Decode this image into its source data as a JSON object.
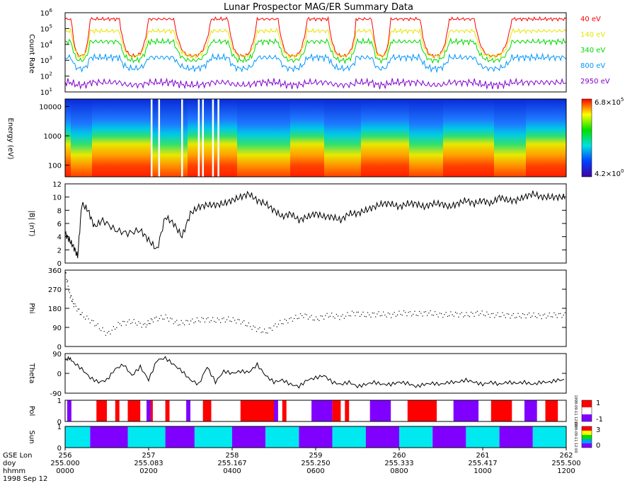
{
  "title": "Lunar Prospector MAG/ER Summary Data",
  "chart_data": [
    {
      "type": "line",
      "id": "count_rate",
      "ylabel": "Count Rate",
      "yscale": "log",
      "ylim": [
        10,
        1000000
      ],
      "yticks": [
        {
          "v": 10,
          "b": "10",
          "e": "1"
        },
        {
          "v": 100,
          "b": "10",
          "e": "2"
        },
        {
          "v": 1000,
          "b": "10",
          "e": "3"
        },
        {
          "v": 10000,
          "b": "10",
          "e": "4"
        },
        {
          "v": 100000,
          "b": "10",
          "e": "5"
        },
        {
          "v": 1000000,
          "b": "10",
          "e": "6"
        }
      ],
      "x_range_hours": [
        0,
        12
      ],
      "series": [
        {
          "name": "40 eV",
          "color": "#ff0000",
          "high": 400000,
          "low": 500
        },
        {
          "name": "140 eV",
          "color": "#e6e600",
          "high": 70000,
          "low": 700
        },
        {
          "name": "340 eV",
          "color": "#00d800",
          "high": 15000,
          "low": 500
        },
        {
          "name": "800 eV",
          "color": "#0096ff",
          "high": 1500,
          "low": 200
        },
        {
          "name": "2950 eV",
          "color": "#8000d0",
          "high": 40,
          "low": 25
        }
      ]
    },
    {
      "type": "heatmap",
      "id": "spectrogram",
      "ylabel": "Energy (eV)",
      "yscale": "log",
      "ylim": [
        40,
        18000
      ],
      "yticks": [
        {
          "v": 100,
          "l": "100"
        },
        {
          "v": 1000,
          "l": "1000"
        },
        {
          "v": 10000,
          "l": "10000"
        }
      ],
      "colorbar": {
        "max_b": "6.8",
        "max_e": "5",
        "min_b": "4.2",
        "min_e": "0",
        "times": "×"
      },
      "data_gaps_hours": [
        2.05,
        2.23,
        2.78,
        3.18,
        3.28,
        3.52,
        3.65
      ]
    },
    {
      "type": "line",
      "id": "bmag",
      "ylabel": "|B| (nT)",
      "ylim": [
        0,
        12
      ],
      "yticks": [
        0,
        2,
        4,
        6,
        8,
        10,
        12
      ],
      "points": [
        [
          0,
          4.5
        ],
        [
          0.1,
          3.5
        ],
        [
          0.2,
          2.5
        ],
        [
          0.3,
          1
        ],
        [
          0.4,
          9
        ],
        [
          0.55,
          8
        ],
        [
          0.7,
          5.5
        ],
        [
          0.9,
          6.5
        ],
        [
          1.2,
          5
        ],
        [
          1.5,
          4.5
        ],
        [
          1.8,
          5
        ],
        [
          2.0,
          3.5
        ],
        [
          2.2,
          2
        ],
        [
          2.4,
          7
        ],
        [
          2.6,
          6
        ],
        [
          2.8,
          4
        ],
        [
          3.0,
          7.5
        ],
        [
          3.2,
          8.5
        ],
        [
          3.4,
          8.8
        ],
        [
          3.6,
          8.8
        ],
        [
          3.8,
          9
        ],
        [
          4.0,
          9.5
        ],
        [
          4.2,
          10
        ],
        [
          4.4,
          10.5
        ],
        [
          4.6,
          9.5
        ],
        [
          4.8,
          9
        ],
        [
          5.0,
          8
        ],
        [
          5.2,
          7
        ],
        [
          5.4,
          7.5
        ],
        [
          5.6,
          6.5
        ],
        [
          5.8,
          7
        ],
        [
          6.0,
          7.5
        ],
        [
          6.2,
          7
        ],
        [
          6.4,
          7
        ],
        [
          6.6,
          6.5
        ],
        [
          6.8,
          7.5
        ],
        [
          7.0,
          7.5
        ],
        [
          7.2,
          8
        ],
        [
          7.4,
          8.5
        ],
        [
          7.6,
          9
        ],
        [
          7.8,
          9
        ],
        [
          8.0,
          8.5
        ],
        [
          8.2,
          9
        ],
        [
          8.4,
          9
        ],
        [
          8.6,
          8.5
        ],
        [
          8.8,
          9
        ],
        [
          9.0,
          9
        ],
        [
          9.2,
          8.5
        ],
        [
          9.4,
          9
        ],
        [
          9.6,
          9.5
        ],
        [
          9.8,
          9
        ],
        [
          10.0,
          9.5
        ],
        [
          10.2,
          9
        ],
        [
          10.4,
          10
        ],
        [
          10.6,
          9.5
        ],
        [
          10.8,
          9.5
        ],
        [
          11.0,
          10
        ],
        [
          11.2,
          10.5
        ],
        [
          11.4,
          10
        ],
        [
          11.6,
          10
        ],
        [
          11.8,
          10
        ],
        [
          12.0,
          10
        ]
      ]
    },
    {
      "type": "scatter",
      "id": "phi",
      "ylabel": "Phi",
      "ylim": [
        0,
        360
      ],
      "yticks": [
        0,
        90,
        180,
        270,
        360
      ],
      "points": [
        [
          0,
          350
        ],
        [
          0.1,
          250
        ],
        [
          0.2,
          200
        ],
        [
          0.4,
          150
        ],
        [
          0.7,
          110
        ],
        [
          1.0,
          60
        ],
        [
          1.3,
          110
        ],
        [
          1.6,
          120
        ],
        [
          1.9,
          100
        ],
        [
          2.1,
          130
        ],
        [
          2.4,
          140
        ],
        [
          2.7,
          110
        ],
        [
          3.0,
          120
        ],
        [
          3.3,
          130
        ],
        [
          3.6,
          125
        ],
        [
          3.9,
          130
        ],
        [
          4.2,
          120
        ],
        [
          4.5,
          90
        ],
        [
          4.8,
          70
        ],
        [
          5.1,
          110
        ],
        [
          5.4,
          130
        ],
        [
          5.7,
          150
        ],
        [
          6.0,
          130
        ],
        [
          6.3,
          150
        ],
        [
          6.6,
          140
        ],
        [
          6.9,
          160
        ],
        [
          7.2,
          150
        ],
        [
          7.5,
          155
        ],
        [
          7.8,
          150
        ],
        [
          8.1,
          160
        ],
        [
          8.4,
          155
        ],
        [
          8.7,
          160
        ],
        [
          9.0,
          150
        ],
        [
          9.3,
          155
        ],
        [
          9.6,
          150
        ],
        [
          9.9,
          160
        ],
        [
          10.2,
          150
        ],
        [
          10.5,
          150
        ],
        [
          10.8,
          145
        ],
        [
          11.1,
          150
        ],
        [
          11.4,
          145
        ],
        [
          11.7,
          150
        ],
        [
          12.0,
          150
        ]
      ]
    },
    {
      "type": "line",
      "id": "theta",
      "ylabel": "Theta",
      "ylim": [
        -90,
        90
      ],
      "yticks": [
        -90,
        0,
        90
      ],
      "points": [
        [
          0,
          60
        ],
        [
          0.1,
          70
        ],
        [
          0.2,
          50
        ],
        [
          0.4,
          20
        ],
        [
          0.6,
          -20
        ],
        [
          0.8,
          -40
        ],
        [
          1.0,
          -30
        ],
        [
          1.2,
          20
        ],
        [
          1.4,
          40
        ],
        [
          1.6,
          -10
        ],
        [
          1.8,
          30
        ],
        [
          2.0,
          -30
        ],
        [
          2.2,
          60
        ],
        [
          2.4,
          70
        ],
        [
          2.6,
          40
        ],
        [
          2.8,
          10
        ],
        [
          3.0,
          -30
        ],
        [
          3.2,
          -50
        ],
        [
          3.4,
          30
        ],
        [
          3.6,
          -40
        ],
        [
          3.8,
          10
        ],
        [
          4.0,
          0
        ],
        [
          4.2,
          10
        ],
        [
          4.4,
          5
        ],
        [
          4.6,
          40
        ],
        [
          4.8,
          -10
        ],
        [
          5.0,
          -40
        ],
        [
          5.2,
          -30
        ],
        [
          5.4,
          -50
        ],
        [
          5.6,
          -60
        ],
        [
          5.8,
          -30
        ],
        [
          6.0,
          -20
        ],
        [
          6.2,
          -10
        ],
        [
          6.4,
          -40
        ],
        [
          6.6,
          -50
        ],
        [
          6.8,
          -40
        ],
        [
          7.0,
          -60
        ],
        [
          7.2,
          -50
        ],
        [
          7.4,
          -40
        ],
        [
          7.6,
          -50
        ],
        [
          7.8,
          -50
        ],
        [
          8.0,
          -40
        ],
        [
          8.2,
          -45
        ],
        [
          8.4,
          -60
        ],
        [
          8.6,
          -50
        ],
        [
          8.8,
          -45
        ],
        [
          9.0,
          -50
        ],
        [
          9.2,
          -40
        ],
        [
          9.4,
          -40
        ],
        [
          9.6,
          -30
        ],
        [
          9.8,
          -40
        ],
        [
          10.0,
          -50
        ],
        [
          10.2,
          -40
        ],
        [
          10.4,
          -50
        ],
        [
          10.6,
          -40
        ],
        [
          10.8,
          -45
        ],
        [
          11.0,
          -40
        ],
        [
          11.2,
          -50
        ],
        [
          11.4,
          -40
        ],
        [
          11.6,
          -40
        ],
        [
          11.8,
          -30
        ],
        [
          12.0,
          -30
        ]
      ]
    },
    {
      "type": "area",
      "id": "pol",
      "ylabel": "Pol",
      "ylim": [
        0,
        1
      ],
      "yticks": [
        0,
        1
      ],
      "colorbar": {
        "max": "1",
        "min": "-1"
      },
      "segments": [
        [
          0.05,
          0.15,
          "#8000ff"
        ],
        [
          0.75,
          1.0,
          "#ff0000"
        ],
        [
          1.2,
          1.3,
          "#ff0000"
        ],
        [
          1.5,
          1.8,
          "#ff0000"
        ],
        [
          1.95,
          2.05,
          "#8000ff"
        ],
        [
          2.05,
          2.1,
          "#ff0000"
        ],
        [
          2.4,
          2.5,
          "#ff0000"
        ],
        [
          2.9,
          3.0,
          "#8000ff"
        ],
        [
          3.3,
          3.5,
          "#ff0000"
        ],
        [
          4.2,
          5.0,
          "#ff0000"
        ],
        [
          5.0,
          5.1,
          "#8000ff"
        ],
        [
          5.2,
          5.3,
          "#ff0000"
        ],
        [
          5.9,
          6.4,
          "#8000ff"
        ],
        [
          6.4,
          6.6,
          "#ff0000"
        ],
        [
          6.7,
          6.8,
          "#ff0000"
        ],
        [
          7.3,
          7.8,
          "#8000ff"
        ],
        [
          8.2,
          8.9,
          "#ff0000"
        ],
        [
          9.3,
          9.9,
          "#8000ff"
        ],
        [
          10.2,
          10.7,
          "#ff0000"
        ],
        [
          11.0,
          11.3,
          "#8000ff"
        ],
        [
          11.5,
          11.8,
          "#ff0000"
        ]
      ],
      "side_text": "1998-09-11 12:00"
    },
    {
      "type": "area",
      "id": "sun",
      "ylabel": "Sun",
      "ylim": [
        0,
        1
      ],
      "yticks": [
        0,
        1
      ],
      "colorbar": {
        "max": "3",
        "min": "0"
      },
      "segments": [
        [
          0,
          0.6,
          "#00e8f0"
        ],
        [
          0.6,
          1.5,
          "#8000ff"
        ],
        [
          1.5,
          2.4,
          "#00e8f0"
        ],
        [
          2.4,
          3.1,
          "#8000ff"
        ],
        [
          3.1,
          4.0,
          "#00e8f0"
        ],
        [
          4.0,
          4.8,
          "#8000ff"
        ],
        [
          4.8,
          5.6,
          "#00e8f0"
        ],
        [
          5.6,
          6.4,
          "#8000ff"
        ],
        [
          6.4,
          7.2,
          "#00e8f0"
        ],
        [
          7.2,
          8.0,
          "#8000ff"
        ],
        [
          8.0,
          8.8,
          "#00e8f0"
        ],
        [
          8.8,
          9.6,
          "#8000ff"
        ],
        [
          9.6,
          10.4,
          "#00e8f0"
        ],
        [
          10.4,
          11.2,
          "#8000ff"
        ],
        [
          11.2,
          12.0,
          "#00e8f0"
        ]
      ],
      "side_text": "1998-09-11 12:00"
    }
  ],
  "x_axis": {
    "row_labels": [
      "GSE Lon",
      "doy",
      "hhmm",
      "1998 Sep 12"
    ],
    "ticks": [
      {
        "h": 0,
        "lon": "256",
        "doy": "255.000",
        "hhmm": "0000"
      },
      {
        "h": 2,
        "lon": "257",
        "doy": "255.083",
        "hhmm": "0200"
      },
      {
        "h": 4,
        "lon": "258",
        "doy": "255.167",
        "hhmm": "0400"
      },
      {
        "h": 6,
        "lon": "259",
        "doy": "255.250",
        "hhmm": "0600"
      },
      {
        "h": 8,
        "lon": "260",
        "doy": "255.333",
        "hhmm": "0800"
      },
      {
        "h": 10,
        "lon": "261",
        "doy": "255.417",
        "hhmm": "1000"
      },
      {
        "h": 12,
        "lon": "262",
        "doy": "255.500",
        "hhmm": "1200"
      }
    ]
  }
}
